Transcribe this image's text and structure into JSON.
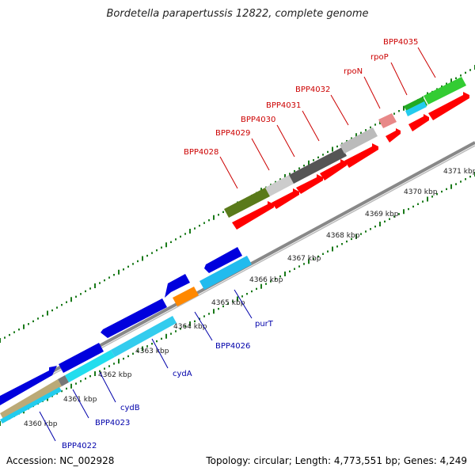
{
  "title": "Bordetella parapertussis 12822, complete genome",
  "footer": {
    "accession": "Accession: NC_002928",
    "summary": "Topology: circular; Length: 4,773,551 bp; Genes: 4,249"
  },
  "colors": {
    "forward_label": "#cc0000",
    "reverse_label": "#0000aa",
    "backbone": "#888888",
    "tick": "#1a7a1a",
    "cds_forward": "#ff0000",
    "cds_reverse": "#0000dd",
    "cds_reverse_light": "#22ccee"
  },
  "ticks": [
    {
      "label": "4360 kbp",
      "kbp": 4360
    },
    {
      "label": "4361 kbp",
      "kbp": 4361
    },
    {
      "label": "4362 kbp",
      "kbp": 4362
    },
    {
      "label": "4363 kbp",
      "kbp": 4363
    },
    {
      "label": "4364 kbp",
      "kbp": 4364
    },
    {
      "label": "4365 kbp",
      "kbp": 4365
    },
    {
      "label": "4366 kbp",
      "kbp": 4366
    },
    {
      "label": "4367 kbp",
      "kbp": 4367
    },
    {
      "label": "4368 kbp",
      "kbp": 4368
    },
    {
      "label": "4369 kbp",
      "kbp": 4369
    },
    {
      "label": "4370 kbp",
      "kbp": 4370
    },
    {
      "label": "4371 kbp",
      "kbp": 4371
    }
  ],
  "forward_labels": [
    "BPP4028",
    "BPP4029",
    "BPP4030",
    "BPP4031",
    "BPP4032",
    "rpoN",
    "rpoP",
    "BPP4035"
  ],
  "reverse_labels": [
    "BPP4022",
    "BPP4023",
    "cydB",
    "cydA",
    "BPP4026",
    "purT"
  ]
}
